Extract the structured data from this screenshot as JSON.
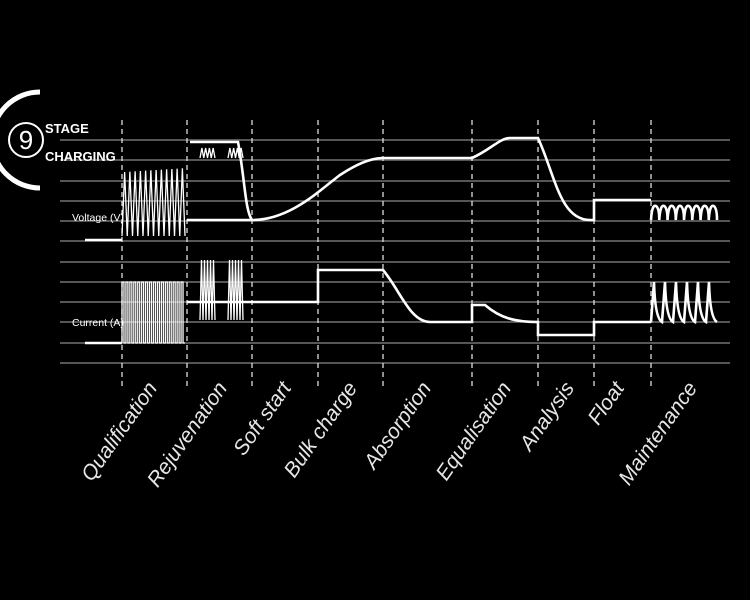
{
  "logo": {
    "number": "9",
    "line1": "STAGE",
    "line2": "CHARGING"
  },
  "axes": {
    "voltage": "Voltage (V)",
    "current": "Current (A)"
  },
  "stages": [
    "Qualification",
    "Rejuvenation",
    "Soft start",
    "Bulk charge",
    "Absorption",
    "Equalisation",
    "Analysis",
    "Float",
    "Maintenance"
  ]
}
